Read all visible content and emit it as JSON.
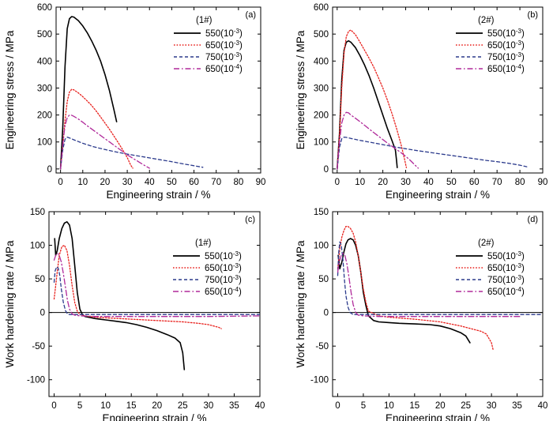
{
  "chart_data": [
    {
      "type": "line",
      "panel_label": "(a)",
      "sample_label": "(1#)",
      "xlabel": "Engineering strain / %",
      "ylabel": "Engineering stress / MPa",
      "xlim": [
        -2,
        90
      ],
      "ylim": [
        -15,
        600
      ],
      "xticks": [
        0,
        10,
        20,
        30,
        40,
        50,
        60,
        70,
        80,
        90
      ],
      "yticks": [
        0,
        100,
        200,
        300,
        400,
        500,
        600
      ],
      "legend_position": "top-right",
      "series": [
        {
          "name": "550(10-3)",
          "color": "#000000",
          "style": "solid",
          "x": [
            0,
            1,
            2,
            3,
            4,
            5,
            6,
            8,
            10,
            12,
            14,
            16,
            18,
            20,
            22,
            24,
            25.2
          ],
          "y": [
            0,
            150,
            380,
            520,
            557,
            565,
            563,
            550,
            530,
            505,
            475,
            440,
            400,
            350,
            290,
            220,
            175
          ]
        },
        {
          "name": "650(10-3)",
          "color": "#e8201c",
          "style": "dotted",
          "x": [
            0,
            1,
            2,
            3,
            4,
            5,
            6,
            8,
            10,
            12,
            14,
            16,
            18,
            20,
            22,
            24,
            26,
            28,
            30,
            31.5,
            32.5
          ],
          "y": [
            0,
            80,
            180,
            250,
            285,
            295,
            293,
            282,
            268,
            252,
            235,
            215,
            193,
            170,
            147,
            122,
            97,
            70,
            42,
            15,
            3
          ]
        },
        {
          "name": "750(10-3)",
          "color": "#2b3a8c",
          "style": "dashed",
          "x": [
            0,
            1,
            2,
            3,
            4,
            6,
            10,
            15,
            20,
            25,
            30,
            35,
            40,
            45,
            50,
            55,
            60,
            64
          ],
          "y": [
            0,
            70,
            110,
            118,
            115,
            108,
            95,
            82,
            72,
            63,
            55,
            48,
            41,
            34,
            27,
            19,
            12,
            6
          ]
        },
        {
          "name": "650(10-4)",
          "color": "#b0299a",
          "style": "dashdot",
          "x": [
            0,
            1,
            2,
            3,
            4,
            5,
            6,
            8,
            10,
            12,
            14,
            16,
            18,
            20,
            22,
            24,
            26,
            28,
            30,
            33,
            36,
            38,
            40
          ],
          "y": [
            0,
            90,
            160,
            190,
            200,
            199,
            195,
            185,
            173,
            160,
            148,
            136,
            124,
            112,
            100,
            88,
            76,
            64,
            52,
            37,
            22,
            12,
            3
          ]
        }
      ]
    },
    {
      "type": "line",
      "panel_label": "(b)",
      "sample_label": "(2#)",
      "xlabel": "Engineering strain / %",
      "ylabel": "Engineering stress / MPa",
      "xlim": [
        -2,
        90
      ],
      "ylim": [
        -15,
        600
      ],
      "xticks": [
        0,
        10,
        20,
        30,
        40,
        50,
        60,
        70,
        80,
        90
      ],
      "yticks": [
        0,
        100,
        200,
        300,
        400,
        500,
        600
      ],
      "legend_position": "top-right",
      "series": [
        {
          "name": "550(10-3)",
          "color": "#000000",
          "style": "solid",
          "x": [
            0,
            1,
            2,
            3,
            4,
            5,
            6,
            8,
            10,
            12,
            14,
            16,
            18,
            20,
            22,
            24,
            25.5,
            26,
            26.3
          ],
          "y": [
            0,
            130,
            330,
            440,
            470,
            475,
            470,
            450,
            420,
            385,
            345,
            300,
            250,
            200,
            150,
            105,
            70,
            30,
            5
          ]
        },
        {
          "name": "650(10-3)",
          "color": "#e8201c",
          "style": "dotted",
          "x": [
            0,
            1,
            2,
            3,
            4,
            5,
            6,
            8,
            10,
            12,
            14,
            16,
            18,
            20,
            22,
            24,
            26,
            28,
            29,
            29.8,
            30.3
          ],
          "y": [
            0,
            120,
            300,
            430,
            490,
            510,
            515,
            498,
            470,
            440,
            410,
            378,
            340,
            300,
            255,
            205,
            150,
            90,
            55,
            25,
            5
          ]
        },
        {
          "name": "750(10-3)",
          "color": "#2b3a8c",
          "style": "dashed",
          "x": [
            0,
            1,
            2,
            3,
            4,
            6,
            10,
            15,
            20,
            25,
            30,
            35,
            40,
            45,
            50,
            55,
            60,
            65,
            70,
            75,
            80,
            83
          ],
          "y": [
            0,
            80,
            112,
            118,
            117,
            113,
            106,
            98,
            90,
            82,
            75,
            68,
            62,
            56,
            50,
            44,
            38,
            32,
            27,
            21,
            14,
            8
          ]
        },
        {
          "name": "650(10-4)",
          "color": "#b0299a",
          "style": "dashdot",
          "x": [
            0,
            1,
            2,
            3,
            4,
            5,
            6,
            8,
            10,
            12,
            14,
            16,
            18,
            20,
            22,
            24,
            26,
            28,
            30,
            32,
            34,
            35.5
          ],
          "y": [
            0,
            100,
            170,
            200,
            210,
            208,
            200,
            188,
            175,
            162,
            148,
            135,
            122,
            109,
            96,
            84,
            72,
            60,
            47,
            32,
            15,
            3
          ]
        }
      ]
    },
    {
      "type": "line",
      "panel_label": "(c)",
      "sample_label": "(1#)",
      "xlabel": "Engineering strain / %",
      "ylabel": "Work hardening rate / MPa",
      "xlim": [
        -1,
        40
      ],
      "ylim": [
        -125,
        150
      ],
      "xticks": [
        0,
        5,
        10,
        15,
        20,
        25,
        30,
        35,
        40
      ],
      "yticks": [
        -100,
        -50,
        0,
        50,
        100,
        150
      ],
      "zero_line": true,
      "legend_position": "right",
      "series": [
        {
          "name": "550(10-3)",
          "color": "#000000",
          "style": "solid",
          "x": [
            0.1,
            0.3,
            0.6,
            1.0,
            1.5,
            2.0,
            2.5,
            3.0,
            3.5,
            4.0,
            4.5,
            5.0,
            5.5,
            6,
            8,
            10,
            12,
            14,
            16,
            18,
            20,
            22,
            23.5,
            24.5,
            25,
            25.3
          ],
          "y": [
            110,
            85,
            92,
            110,
            125,
            133,
            135,
            130,
            110,
            70,
            30,
            5,
            -3,
            -6,
            -9,
            -11,
            -13,
            -15,
            -18,
            -22,
            -27,
            -33,
            -38,
            -45,
            -60,
            -85
          ]
        },
        {
          "name": "650(10-3)",
          "color": "#e8201c",
          "style": "dotted",
          "x": [
            0,
            0.3,
            0.6,
            1.0,
            1.5,
            2.0,
            2.5,
            3.0,
            3.5,
            4.0,
            4.5,
            5,
            6,
            8,
            10,
            15,
            20,
            25,
            28,
            30,
            31,
            32,
            32.5
          ],
          "y": [
            20,
            40,
            60,
            85,
            98,
            100,
            92,
            70,
            40,
            15,
            2,
            -3,
            -5,
            -7,
            -8,
            -10,
            -12,
            -14,
            -16,
            -18,
            -20,
            -22,
            -24
          ]
        },
        {
          "name": "750(10-3)",
          "color": "#2b3a8c",
          "style": "dashed",
          "x": [
            0,
            0.2,
            0.5,
            0.8,
            1.1,
            1.4,
            1.8,
            2.2,
            2.6,
            3,
            4,
            6,
            10,
            20,
            30,
            40
          ],
          "y": [
            45,
            62,
            68,
            66,
            55,
            35,
            15,
            3,
            -2,
            -3,
            -3,
            -3,
            -3,
            -3,
            -3,
            -3
          ]
        },
        {
          "name": "650(10-4)",
          "color": "#b0299a",
          "style": "dashdot",
          "x": [
            0,
            0.3,
            0.7,
            1.0,
            1.4,
            1.8,
            2.2,
            2.6,
            3.0,
            3.5,
            4,
            5,
            8,
            12,
            20,
            30,
            40
          ],
          "y": [
            78,
            85,
            88,
            85,
            75,
            58,
            38,
            18,
            5,
            -2,
            -4,
            -5,
            -6,
            -6,
            -6,
            -6,
            -5
          ]
        }
      ]
    },
    {
      "type": "line",
      "panel_label": "(d)",
      "sample_label": "(2#)",
      "xlabel": "Engineering strain / %",
      "ylabel": "Work hardening rate / MPa",
      "xlim": [
        -1,
        40
      ],
      "ylim": [
        -125,
        150
      ],
      "xticks": [
        0,
        5,
        10,
        15,
        20,
        25,
        30,
        35,
        40
      ],
      "yticks": [
        -100,
        -50,
        0,
        50,
        100,
        150
      ],
      "zero_line": true,
      "legend_position": "right",
      "series": [
        {
          "name": "550(10-3)",
          "color": "#000000",
          "style": "solid",
          "x": [
            0.1,
            0.4,
            0.8,
            1.2,
            1.6,
            2.0,
            2.5,
            3.0,
            3.5,
            4.0,
            4.5,
            5.0,
            5.5,
            6,
            7,
            8,
            10,
            12,
            15,
            18,
            20,
            22,
            24,
            25,
            25.8
          ],
          "y": [
            85,
            65,
            75,
            90,
            102,
            108,
            110,
            108,
            100,
            85,
            60,
            30,
            10,
            -5,
            -12,
            -14,
            -15,
            -16,
            -17,
            -18,
            -20,
            -24,
            -30,
            -35,
            -45
          ]
        },
        {
          "name": "650(10-3)",
          "color": "#e8201c",
          "style": "dotted",
          "x": [
            0,
            0.4,
            0.8,
            1.2,
            1.6,
            2.0,
            2.5,
            3.0,
            3.5,
            4.0,
            4.5,
            5,
            5.5,
            6,
            8,
            10,
            15,
            20,
            24,
            26,
            28,
            29,
            30,
            30.3
          ],
          "y": [
            65,
            95,
            112,
            122,
            128,
            128,
            125,
            118,
            105,
            85,
            60,
            35,
            15,
            2,
            -5,
            -7,
            -10,
            -14,
            -20,
            -24,
            -28,
            -32,
            -45,
            -55
          ]
        },
        {
          "name": "750(10-3)",
          "color": "#2b3a8c",
          "style": "dashed",
          "x": [
            0,
            0.2,
            0.4,
            0.7,
            1.0,
            1.3,
            1.6,
            2.0,
            2.4,
            3,
            5,
            10,
            20,
            30,
            40
          ],
          "y": [
            55,
            90,
            105,
            100,
            80,
            50,
            25,
            8,
            0,
            -3,
            -3,
            -3,
            -3,
            -3,
            -3
          ]
        },
        {
          "name": "650(10-4)",
          "color": "#b0299a",
          "style": "dashdot",
          "x": [
            0,
            0.3,
            0.7,
            1.0,
            1.4,
            1.8,
            2.2,
            2.6,
            3.0,
            3.5,
            4,
            5,
            8,
            12,
            20,
            30,
            35.5
          ],
          "y": [
            60,
            75,
            85,
            88,
            85,
            72,
            52,
            30,
            12,
            0,
            -4,
            -5,
            -6,
            -6,
            -6,
            -6,
            -6
          ]
        }
      ]
    }
  ]
}
